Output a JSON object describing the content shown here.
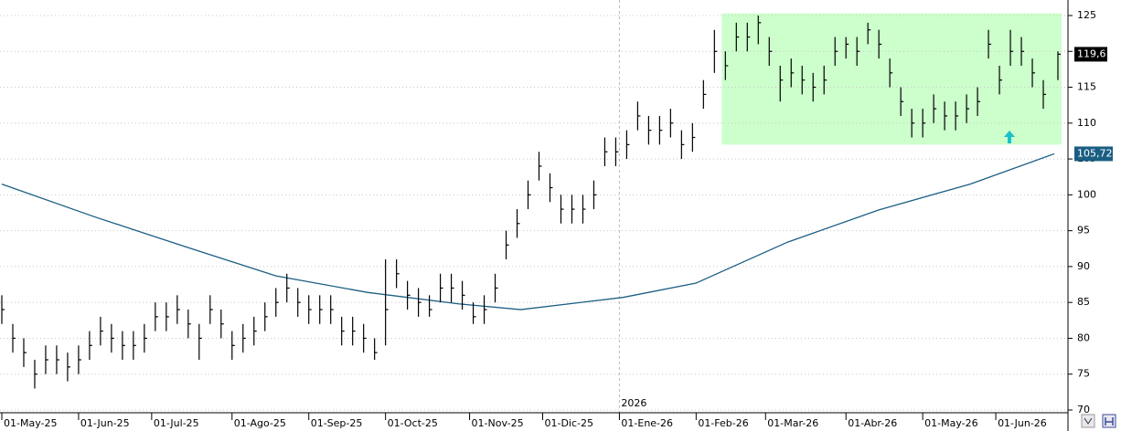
{
  "chart_data": {
    "type": "ohlc",
    "x": [
      0,
      3,
      6,
      9,
      12,
      15,
      18,
      21,
      24,
      27,
      30,
      33,
      36,
      39,
      42,
      45,
      48,
      51,
      54,
      57,
      60,
      63,
      66,
      69,
      72,
      75,
      78,
      81,
      84,
      87,
      90,
      93,
      96,
      99,
      102,
      105,
      108,
      111,
      114,
      117,
      120,
      123,
      126,
      129,
      132,
      135,
      138,
      141,
      144,
      147,
      150,
      153,
      156,
      159,
      162,
      165,
      168,
      171,
      174,
      177,
      180,
      183,
      186,
      189,
      192,
      195,
      198,
      201,
      204,
      207,
      210,
      213,
      216,
      219,
      222,
      225,
      228,
      231,
      234,
      237,
      240,
      243,
      246,
      249,
      252,
      255,
      258,
      261,
      264,
      267,
      270,
      273,
      276,
      279,
      282,
      285,
      289
    ],
    "high": [
      86,
      82,
      80,
      77,
      79,
      79,
      78,
      79,
      81,
      83,
      82,
      81,
      81,
      82,
      85,
      85,
      86,
      84,
      82,
      86,
      84,
      81,
      82,
      83,
      85,
      87,
      89,
      87,
      86,
      86,
      86,
      83,
      83,
      82,
      80,
      91,
      91,
      88,
      87,
      86,
      89,
      89,
      88,
      85,
      86,
      89,
      95,
      98,
      102,
      106,
      103,
      100,
      100,
      100,
      102,
      108,
      108,
      109,
      113,
      111,
      111,
      112,
      109,
      110,
      116,
      123,
      120,
      124,
      124,
      125,
      122,
      118,
      119,
      118,
      117,
      118,
      122,
      122,
      122,
      124,
      123,
      119,
      115,
      112,
      112,
      114,
      113,
      113,
      114,
      115,
      123,
      118,
      123,
      122,
      119,
      116,
      120
    ],
    "low": [
      82,
      78,
      76,
      73,
      75,
      75,
      74,
      75,
      77,
      79,
      78,
      77,
      77,
      78,
      81,
      81,
      82,
      80,
      77,
      82,
      80,
      77,
      78,
      79,
      81,
      83,
      85,
      83,
      82,
      82,
      82,
      79,
      79,
      78,
      77,
      79,
      87,
      84,
      83,
      83,
      85,
      85,
      84,
      82,
      82,
      85,
      91,
      94,
      98,
      102,
      99,
      96,
      96,
      96,
      98,
      104,
      104,
      105,
      109,
      107,
      107,
      108,
      105,
      106,
      112,
      117,
      116,
      120,
      120,
      121,
      118,
      113,
      115,
      114,
      113,
      114,
      118,
      119,
      118,
      121,
      119,
      115,
      111,
      108,
      108,
      110,
      109,
      109,
      110,
      111,
      119,
      114,
      118,
      118,
      115,
      112,
      116
    ],
    "close": [
      84,
      80,
      78,
      75,
      77,
      77,
      76,
      77,
      79,
      81,
      80,
      79,
      79,
      80,
      83,
      83,
      84,
      82,
      80,
      84,
      82,
      79,
      80,
      81,
      83,
      85,
      87,
      85,
      84,
      84,
      84,
      81,
      81,
      80,
      78,
      84,
      89,
      86,
      85,
      84,
      87,
      87,
      86,
      83,
      84,
      87,
      93,
      96,
      100,
      104,
      101,
      98,
      98,
      98,
      100,
      106,
      106,
      107,
      111,
      109,
      109,
      110,
      107,
      108,
      114,
      120,
      118,
      122,
      122,
      124,
      120,
      116,
      117,
      116,
      115,
      116,
      120,
      121,
      120,
      123,
      121,
      117,
      113,
      110,
      110,
      112,
      111,
      111,
      112,
      113,
      121,
      116,
      120,
      120,
      117,
      114,
      119.6
    ],
    "color": "#000000",
    "last_label": {
      "value": 119.6,
      "label": "119,6"
    },
    "moving_average": {
      "color": "#1b5e83",
      "x": [
        0,
        25,
        50,
        75,
        100,
        125,
        142,
        170,
        190,
        215,
        240,
        265,
        288
      ],
      "values": [
        101.5,
        97,
        92.8,
        88.7,
        86.4,
        84.8,
        84,
        85.7,
        87.7,
        93.4,
        97.9,
        101.5,
        105.72
      ],
      "last_label": {
        "value": 105.72,
        "label": "105,72"
      }
    },
    "highlight": {
      "xlim": [
        197,
        290
      ],
      "ylim": [
        107,
        125.3
      ],
      "color": "#ccffcc"
    },
    "year_marker": {
      "x": 169,
      "label": "2026"
    },
    "xlim": [
      0,
      291
    ],
    "xticks": [
      {
        "value": 0,
        "label": "01-May-25"
      },
      {
        "value": 21,
        "label": "01-Jun-25"
      },
      {
        "value": 41,
        "label": "01-Jul-25"
      },
      {
        "value": 63,
        "label": "01-Ago-25"
      },
      {
        "value": 84,
        "label": "01-Sep-25"
      },
      {
        "value": 105,
        "label": "01-Oct-25"
      },
      {
        "value": 128,
        "label": "01-Nov-25"
      },
      {
        "value": 148,
        "label": "01-Dic-25"
      },
      {
        "value": 169,
        "label": "01-Ene-26"
      },
      {
        "value": 190,
        "label": "01-Feb-26"
      },
      {
        "value": 209,
        "label": "01-Mar-26"
      },
      {
        "value": 231,
        "label": "01-Abr-26"
      },
      {
        "value": 252,
        "label": "01-May-26"
      },
      {
        "value": 272,
        "label": "01-Jun-26"
      }
    ],
    "ylim": [
      70,
      125
    ],
    "yticks": [
      70,
      75,
      80,
      85,
      90,
      95,
      100,
      105,
      110,
      115,
      120,
      125
    ],
    "grid": true
  }
}
